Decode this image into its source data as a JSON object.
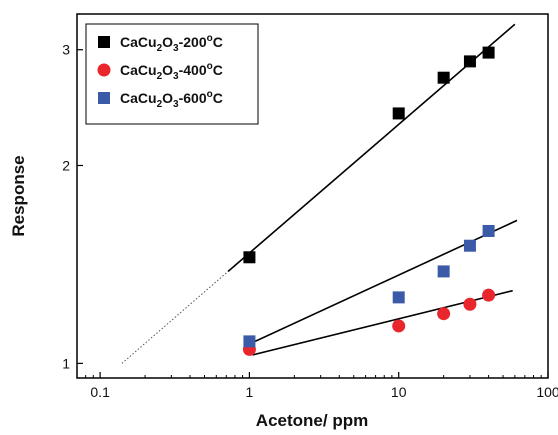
{
  "chart_data": {
    "type": "scatter",
    "xlabel": "Acetone/ ppm",
    "ylabel": "Response",
    "x_scale": "log",
    "y_scale": "log",
    "xlim": [
      0.07,
      100
    ],
    "ylim": [
      0.95,
      3.4
    ],
    "x_ticks": [
      {
        "value": 0.1,
        "label": "0.1"
      },
      {
        "value": 1,
        "label": "1"
      },
      {
        "value": 10,
        "label": "10"
      },
      {
        "value": 100,
        "label": "100"
      }
    ],
    "y_ticks": [
      {
        "value": 1,
        "label": "1"
      },
      {
        "value": 2,
        "label": "2"
      },
      {
        "value": 3,
        "label": "3"
      }
    ],
    "legend_position": "top-left",
    "series": [
      {
        "name": "CaCu2O3-200°C",
        "legend": {
          "main": "CaCu",
          "sub1": "2",
          "mid": "O",
          "sub2": "3",
          "suffix": "-200",
          "sup": "o",
          "unit": "C"
        },
        "marker": "square",
        "color": "#000000",
        "x": [
          1,
          10,
          20,
          30,
          40
        ],
        "y": [
          1.45,
          2.4,
          2.72,
          2.88,
          2.97
        ],
        "fit": {
          "x": [
            0.72,
            60
          ],
          "y": [
            1.38,
            3.28
          ]
        },
        "extrapolation": {
          "x": [
            0.14,
            0.72
          ],
          "y": [
            1.0,
            1.38
          ]
        }
      },
      {
        "name": "CaCu2O3-400°C",
        "legend": {
          "main": "CaCu",
          "sub1": "2",
          "mid": "O",
          "sub2": "3",
          "suffix": "-400",
          "sup": "o",
          "unit": "C"
        },
        "marker": "circle",
        "color": "#e8262b",
        "x": [
          1,
          10,
          20,
          30,
          40
        ],
        "y": [
          1.05,
          1.14,
          1.19,
          1.23,
          1.27
        ],
        "fit": {
          "x": [
            1.05,
            58
          ],
          "y": [
            1.03,
            1.29
          ]
        }
      },
      {
        "name": "CaCu2O3-600°C",
        "legend": {
          "main": "CaCu",
          "sub1": "2",
          "mid": "O",
          "sub2": "3",
          "suffix": "-600",
          "sup": "o",
          "unit": "C"
        },
        "marker": "square",
        "color": "#3b5ba8",
        "x": [
          1,
          10,
          20,
          30,
          40
        ],
        "y": [
          1.08,
          1.26,
          1.38,
          1.51,
          1.59
        ],
        "fit": {
          "x": [
            1.0,
            62
          ],
          "y": [
            1.07,
            1.65
          ]
        }
      }
    ]
  }
}
